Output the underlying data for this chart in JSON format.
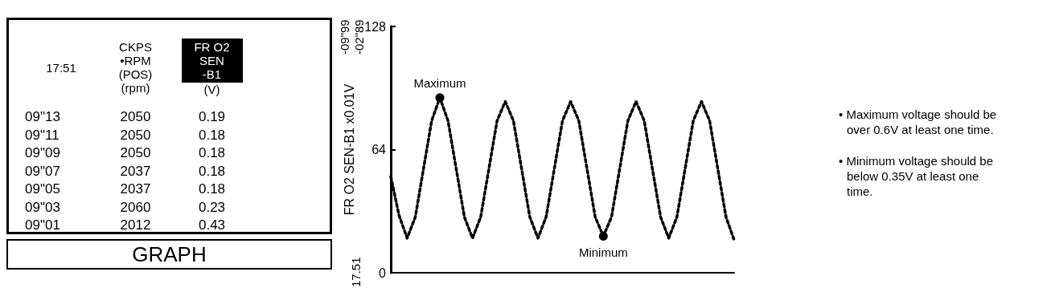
{
  "chart_data": [
    {
      "type": "other",
      "categories": [
        "17:51",
        "CKPS\n•RPM\n(POS)\n(rpm)",
        "FR O2\nSEN\n-B1\n(V)"
      ],
      "cell_labels": [
        [
          "09\"13",
          "2050",
          "0.19"
        ],
        [
          "09\"11",
          "2050",
          "0.18"
        ],
        [
          "09\"09",
          "2050",
          "0.18"
        ],
        [
          "09\"07",
          "2037",
          "0.18"
        ],
        [
          "09\"05",
          "2037",
          "0.18"
        ],
        [
          "09\"03",
          "2060",
          "0.23"
        ],
        [
          "09\"01",
          "2012",
          "0.43"
        ]
      ],
      "annotations": [
        "GRAPH"
      ]
    },
    {
      "type": "line",
      "ylabel": "FR O2 SEN-B1 x0.01V",
      "categories": [
        null,
        null,
        null,
        null,
        null,
        null,
        null,
        null,
        null,
        null,
        null,
        null,
        null,
        null,
        null,
        null,
        null,
        null,
        null,
        null,
        null,
        null,
        null,
        null,
        null,
        null,
        null,
        null,
        null,
        null,
        null,
        null,
        null,
        null,
        null,
        null,
        null,
        null,
        null,
        null,
        null,
        null,
        null
      ],
      "series": [
        {
          "color": "#000000",
          "values": [
            50,
            30,
            18,
            29,
            54,
            79,
            91,
            79,
            54,
            29,
            18,
            29,
            54,
            79,
            89,
            79,
            54,
            29,
            18,
            29,
            54,
            79,
            89,
            79,
            54,
            29,
            19,
            29,
            54,
            79,
            89,
            79,
            54,
            29,
            18,
            29,
            54,
            79,
            89,
            79,
            54,
            29,
            17
          ]
        }
      ],
      "ylim": [
        0,
        128
      ],
      "yticks": [
        0,
        64,
        128
      ],
      "tick_labels": "y",
      "grid": false,
      "marker": "none",
      "line_style": "dotted",
      "annotations": [
        {
          "text": "Maximum",
          "y": 91
        },
        {
          "text": "Minimum",
          "y": 19
        },
        "17.51",
        "-09\"99",
        "-02\"89",
        "• Maximum voltage should be over 0.6V at least one time.",
        "• Minimum voltage should be below 0.35V at least one time."
      ]
    }
  ]
}
